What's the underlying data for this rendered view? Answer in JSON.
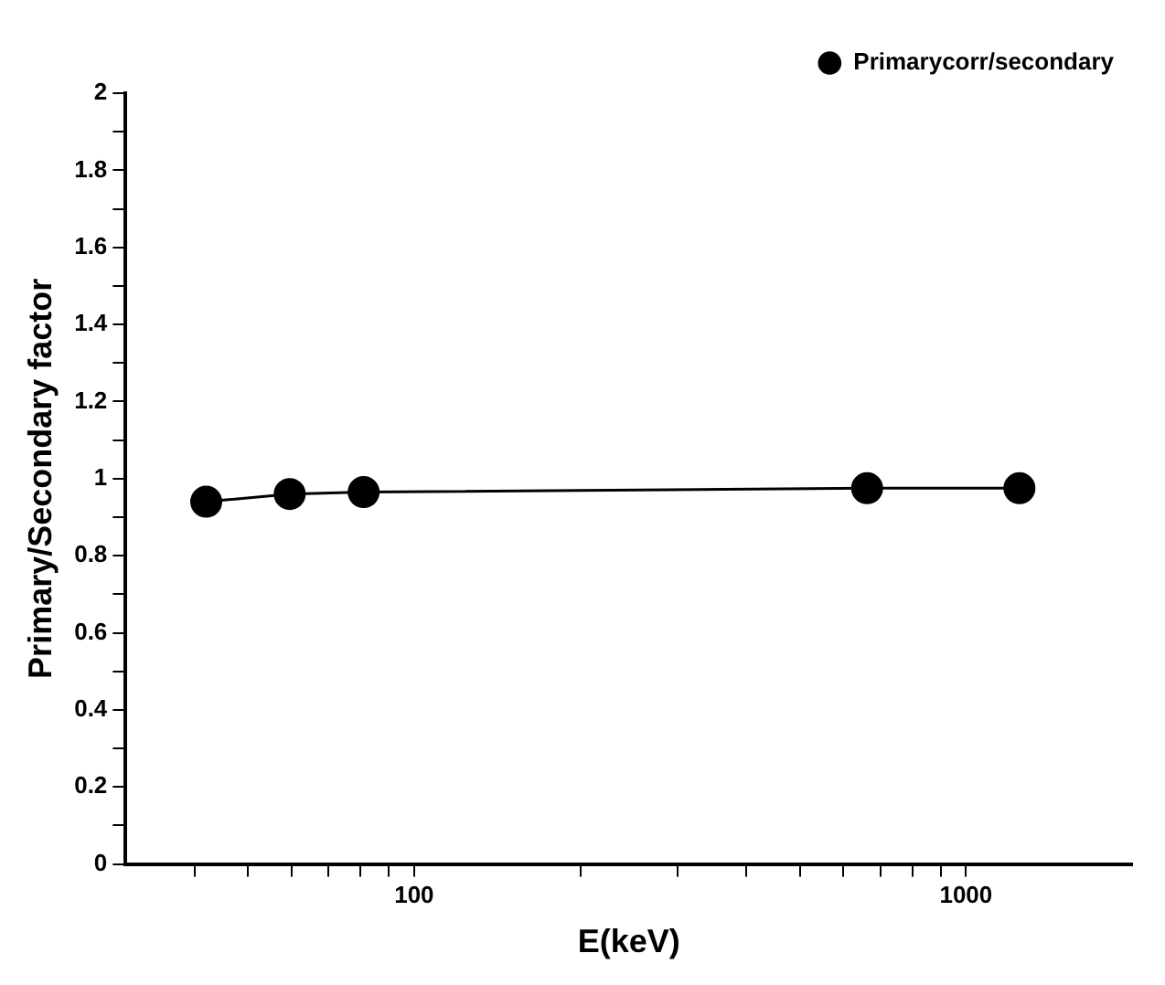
{
  "chart_data": {
    "type": "line",
    "xlabel": "E(keV)",
    "ylabel": "Primary/Secondary factor",
    "x": [
      42,
      59.5,
      81,
      662,
      1250
    ],
    "series": [
      {
        "name": "Primarycorr/secondary",
        "color": "#000000",
        "values": [
          0.94,
          0.96,
          0.965,
          0.975,
          0.975
        ]
      }
    ],
    "log": "x",
    "xlim": [
      30,
      2000
    ],
    "xticks": [
      {
        "value": 40,
        "label": null
      },
      {
        "value": 50,
        "label": null
      },
      {
        "value": 60,
        "label": null
      },
      {
        "value": 70,
        "label": null
      },
      {
        "value": 80,
        "label": null
      },
      {
        "value": 90,
        "label": null
      },
      100,
      {
        "value": 200,
        "label": null
      },
      {
        "value": 300,
        "label": null
      },
      {
        "value": 400,
        "label": null
      },
      {
        "value": 500,
        "label": null
      },
      {
        "value": 600,
        "label": null
      },
      {
        "value": 700,
        "label": null
      },
      {
        "value": 800,
        "label": null
      },
      {
        "value": 900,
        "label": null
      },
      1000
    ],
    "ylim": [
      0,
      2
    ],
    "yticks": [
      0,
      {
        "value": 0.1,
        "label": null
      },
      0.2,
      {
        "value": 0.3,
        "label": null
      },
      0.4,
      {
        "value": 0.5,
        "label": null
      },
      0.6,
      {
        "value": 0.7,
        "label": null
      },
      0.8,
      {
        "value": 0.9,
        "label": null
      },
      1,
      {
        "value": 1.1,
        "label": null
      },
      1.2,
      {
        "value": 1.3,
        "label": null
      },
      1.4,
      {
        "value": 1.5,
        "label": null
      },
      1.6,
      {
        "value": 1.7,
        "label": null
      },
      1.8,
      {
        "value": 1.9,
        "label": null
      },
      2
    ],
    "grid": false,
    "legend": "top right",
    "marker": "circle",
    "line_style": "solid"
  }
}
